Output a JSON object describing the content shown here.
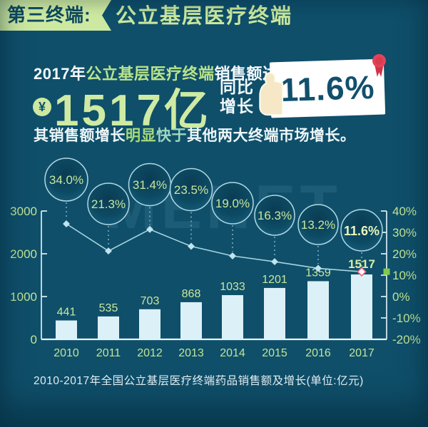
{
  "header": {
    "banner_label": "第三终端:",
    "title": "公立基层医疗终端"
  },
  "stat": {
    "line1": {
      "prefix": "2017年",
      "highlight": "公立基层医疗终端",
      "suffix": "销售额达到"
    },
    "currency_symbol": "¥",
    "amount": "1517亿",
    "yoy": {
      "label_line1": "同比",
      "label_line2": "增长",
      "value": "11.6%"
    }
  },
  "subtitle": {
    "part1": "其销售额增长",
    "highlight1": "明显",
    "highlight2": "快于",
    "part2": "其他两大终端市场增长。"
  },
  "watermark": "MENET",
  "chart_data": {
    "type": "bar+line",
    "categories": [
      "2010",
      "2011",
      "2012",
      "2013",
      "2014",
      "2015",
      "2016",
      "2017"
    ],
    "series": [
      {
        "name": "药品销售额(亿元)",
        "type": "bar",
        "values": [
          441,
          535,
          703,
          868,
          1033,
          1201,
          1359,
          1517
        ]
      },
      {
        "name": "同比增长(%)",
        "type": "line",
        "values": [
          34.0,
          21.3,
          31.4,
          23.5,
          19.0,
          16.3,
          13.2,
          11.6
        ]
      }
    ],
    "left_axis": {
      "ticks": [
        3000,
        2000,
        1000,
        0
      ],
      "range": [
        0,
        3000
      ]
    },
    "right_axis": {
      "ticks": [
        "40%",
        "30%",
        "20%",
        "10%",
        "0%",
        "-10%",
        "-20%"
      ],
      "range": [
        -20,
        40
      ]
    },
    "highlight_index": 7,
    "grid": false,
    "legend": false
  },
  "caption": "2010-2017年全国公立基层医疗终端药品销售额及增长(单位:亿元)",
  "colors": {
    "background": "#0f4f6a",
    "banner_green": "#cde9a1",
    "text_green": "#c9e79d",
    "bright_value_green": "#d9efa5",
    "bubble_text_green": "#c9e79d",
    "bubble_highlight_text": "#e9f6bd",
    "axis_label_green": "#c2e595",
    "bar_fill": "#dcf0f7",
    "axis_line": "#d8ecf2",
    "baseline": "#ecf6f9",
    "trend_line": "#aedbe8",
    "marker_fill": "#bfe4ef",
    "marker_highlight_stroke": "#e8647e",
    "dashed_connector": "#9ecadb",
    "bubble_stroke": "#b2d8e4",
    "axis_square_green": "#7fca4d",
    "card_text": "#11506d",
    "ribbon_red": "#e64257",
    "hand_cream": "#f6e8c6"
  }
}
